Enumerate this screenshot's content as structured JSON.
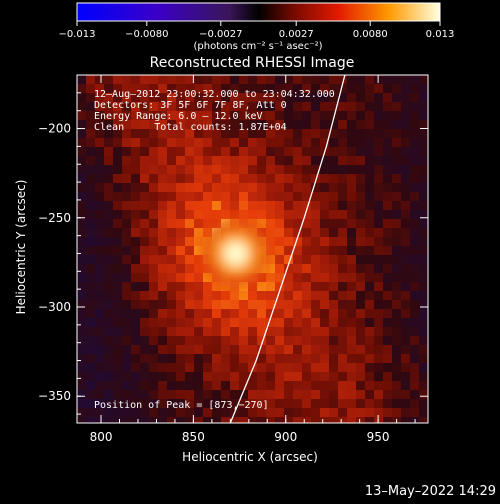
{
  "chart_data": {
    "type": "heatmap",
    "title": "Reconstructed RHESSI Image",
    "xlabel": "Heliocentric X (arcsec)",
    "ylabel": "Heliocentric Y (arcsec)",
    "xlim": [
      787,
      977
    ],
    "ylim": [
      -365,
      -170
    ],
    "xticks": [
      800,
      850,
      900,
      950
    ],
    "yticks": [
      -200,
      -250,
      -300,
      -350
    ],
    "xtick_labels": [
      "800",
      "850",
      "900",
      "950"
    ],
    "ytick_labels": [
      "−200",
      "−250",
      "−300",
      "−350"
    ],
    "colorbar": {
      "min": -0.013,
      "max": 0.013,
      "tick_values": [
        -0.013,
        -0.008,
        -0.0027,
        0.0027,
        0.008,
        0.013
      ],
      "tick_labels": [
        "−0.013",
        "−0.0080",
        "−0.0027",
        "0.0027",
        "0.0080",
        "0.013"
      ],
      "unit_label": "(photons cm⁻² s⁻¹ asec⁻²)"
    },
    "annotations": [
      "12–Aug–2012 23:00:32.000 to 23:04:32.000",
      "Detectors: 3F 5F 6F 7F 8F, Att 0",
      "Energy Range: 6.0 – 12.0 keV",
      "Clean     Total counts: 1.87E+04"
    ],
    "peak_label": "Position of Peak = [873,−270]",
    "peak": {
      "x": 873,
      "y": -270
    },
    "limb_curve": {
      "x": [
        932,
        922,
        910,
        897,
        884,
        870
      ],
      "y": [
        -170,
        -210,
        -250,
        -290,
        -330,
        -365
      ]
    },
    "colors": {
      "background": "#000000",
      "text": "#ffffff",
      "limb": "#ffffff"
    }
  },
  "footer": {
    "date": "13–May–2022 14:29"
  }
}
